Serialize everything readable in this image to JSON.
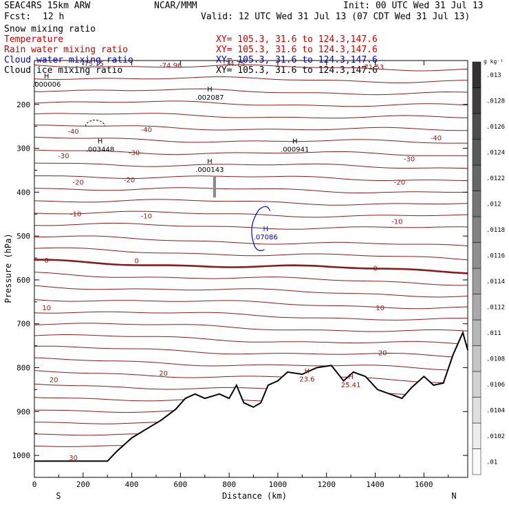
{
  "header": {
    "model": "SEAC4RS 15km ARW",
    "org": "NCAR/MMM",
    "init": "Init: 00 UTC Wed 31 Jul 13",
    "fcst_label": "Fcst:",
    "fcst_value": "12 h",
    "valid": "Valid: 12 UTC Wed 31 Jul 13 (07 CDT Wed 31 Jul 13)"
  },
  "fields": [
    {
      "name": "Snow mixing ratio",
      "xy": "",
      "color": "#000000"
    },
    {
      "name": "Temperature",
      "xy": "XY= 105.3, 31.6 to 124.3,147.6",
      "color": "#cc0000"
    },
    {
      "name": "Rain water mixing ratio",
      "xy": "XY= 105.3, 31.6 to 124.3,147.6",
      "color": "#cc0000"
    },
    {
      "name": "Cloud water mixing ratio",
      "xy": "XY= 105.3, 31.6 to 124.3,147.6",
      "color": "#0000cc"
    },
    {
      "name": "Cloud ice mixing ratio",
      "xy": "XY= 105.3, 31.6 to 124.3,147.6",
      "color": "#000000"
    }
  ],
  "chart_data": {
    "type": "cross-section",
    "xlabel": "Distance (km)",
    "ylabel": "Pressure (hPa)",
    "xlim": [
      0,
      1780
    ],
    "ylim": [
      1050,
      100
    ],
    "x_ticks": [
      0,
      200,
      400,
      600,
      800,
      1000,
      1200,
      1400,
      1600
    ],
    "y_ticks": [
      200,
      300,
      400,
      500,
      600,
      700,
      800,
      900,
      1000
    ],
    "end_labels": {
      "left": "S",
      "right": "N"
    },
    "colorbar": {
      "unit": "g kg⁻¹",
      "ticks": [
        ".01",
        ".0102",
        ".0104",
        ".0106",
        ".0108",
        ".011",
        ".0112",
        ".0114",
        ".0116",
        ".0118",
        ".012",
        ".0122",
        ".0124",
        ".0126",
        ".0128",
        ".013"
      ]
    },
    "temperature_labels": [
      {
        "text": "-74.96",
        "x": 560,
        "p": 112
      },
      {
        "text": "-74.75",
        "x": 820,
        "p": 108
      },
      {
        "text": "-71.53",
        "x": 1390,
        "p": 116
      },
      {
        "text": "-75.15",
        "x": 240,
        "p": 108
      },
      {
        "text": "-40",
        "x": 160,
        "p": 262
      },
      {
        "text": "-40",
        "x": 460,
        "p": 258
      },
      {
        "text": "-40",
        "x": 1650,
        "p": 277
      },
      {
        "text": "-30",
        "x": 120,
        "p": 318
      },
      {
        "text": "-30",
        "x": 410,
        "p": 311
      },
      {
        "text": "-30",
        "x": 1540,
        "p": 325
      },
      {
        "text": "-20",
        "x": 180,
        "p": 378
      },
      {
        "text": "-20",
        "x": 390,
        "p": 373
      },
      {
        "text": "-20",
        "x": 1500,
        "p": 378
      },
      {
        "text": "-10",
        "x": 170,
        "p": 450
      },
      {
        "text": "-10",
        "x": 460,
        "p": 455
      },
      {
        "text": "-10",
        "x": 1490,
        "p": 468
      },
      {
        "text": "0",
        "x": 50,
        "p": 556
      },
      {
        "text": "0",
        "x": 420,
        "p": 557
      },
      {
        "text": "0",
        "x": 1400,
        "p": 574
      },
      {
        "text": "10",
        "x": 50,
        "p": 664
      },
      {
        "text": "10",
        "x": 1420,
        "p": 664
      },
      {
        "text": "20",
        "x": 80,
        "p": 828
      },
      {
        "text": "20",
        "x": 530,
        "p": 813
      },
      {
        "text": "20",
        "x": 1430,
        "p": 767
      },
      {
        "text": "30",
        "x": 160,
        "p": 1006
      }
    ],
    "maxima": [
      {
        "text": ".000006",
        "x": 50,
        "p": 155
      },
      {
        "text": ".002087",
        "x": 720,
        "p": 185
      },
      {
        "text": ".003448",
        "x": 270,
        "p": 303
      },
      {
        "text": ".000941",
        "x": 1070,
        "p": 303
      },
      {
        "text": ".000143",
        "x": 720,
        "p": 349
      },
      {
        "text": ".07086",
        "x": 950,
        "p": 503
      },
      {
        "text": "23.6",
        "x": 1120,
        "p": 827
      },
      {
        "text": "25.41",
        "x": 1300,
        "p": 840
      }
    ],
    "terrain_pressure": [
      {
        "x": 0,
        "p": 1013
      },
      {
        "x": 300,
        "p": 1013
      },
      {
        "x": 340,
        "p": 990
      },
      {
        "x": 400,
        "p": 960
      },
      {
        "x": 460,
        "p": 940
      },
      {
        "x": 520,
        "p": 920
      },
      {
        "x": 580,
        "p": 895
      },
      {
        "x": 620,
        "p": 870
      },
      {
        "x": 660,
        "p": 860
      },
      {
        "x": 700,
        "p": 870
      },
      {
        "x": 760,
        "p": 860
      },
      {
        "x": 800,
        "p": 870
      },
      {
        "x": 830,
        "p": 840
      },
      {
        "x": 860,
        "p": 880
      },
      {
        "x": 900,
        "p": 890
      },
      {
        "x": 930,
        "p": 880
      },
      {
        "x": 960,
        "p": 840
      },
      {
        "x": 1000,
        "p": 830
      },
      {
        "x": 1040,
        "p": 810
      },
      {
        "x": 1100,
        "p": 815
      },
      {
        "x": 1160,
        "p": 800
      },
      {
        "x": 1220,
        "p": 795
      },
      {
        "x": 1270,
        "p": 830
      },
      {
        "x": 1310,
        "p": 810
      },
      {
        "x": 1360,
        "p": 820
      },
      {
        "x": 1410,
        "p": 850
      },
      {
        "x": 1460,
        "p": 860
      },
      {
        "x": 1510,
        "p": 870
      },
      {
        "x": 1550,
        "p": 845
      },
      {
        "x": 1600,
        "p": 820
      },
      {
        "x": 1640,
        "p": 840
      },
      {
        "x": 1680,
        "p": 835
      },
      {
        "x": 1720,
        "p": 770
      },
      {
        "x": 1760,
        "p": 720
      },
      {
        "x": 1780,
        "p": 760
      }
    ]
  }
}
